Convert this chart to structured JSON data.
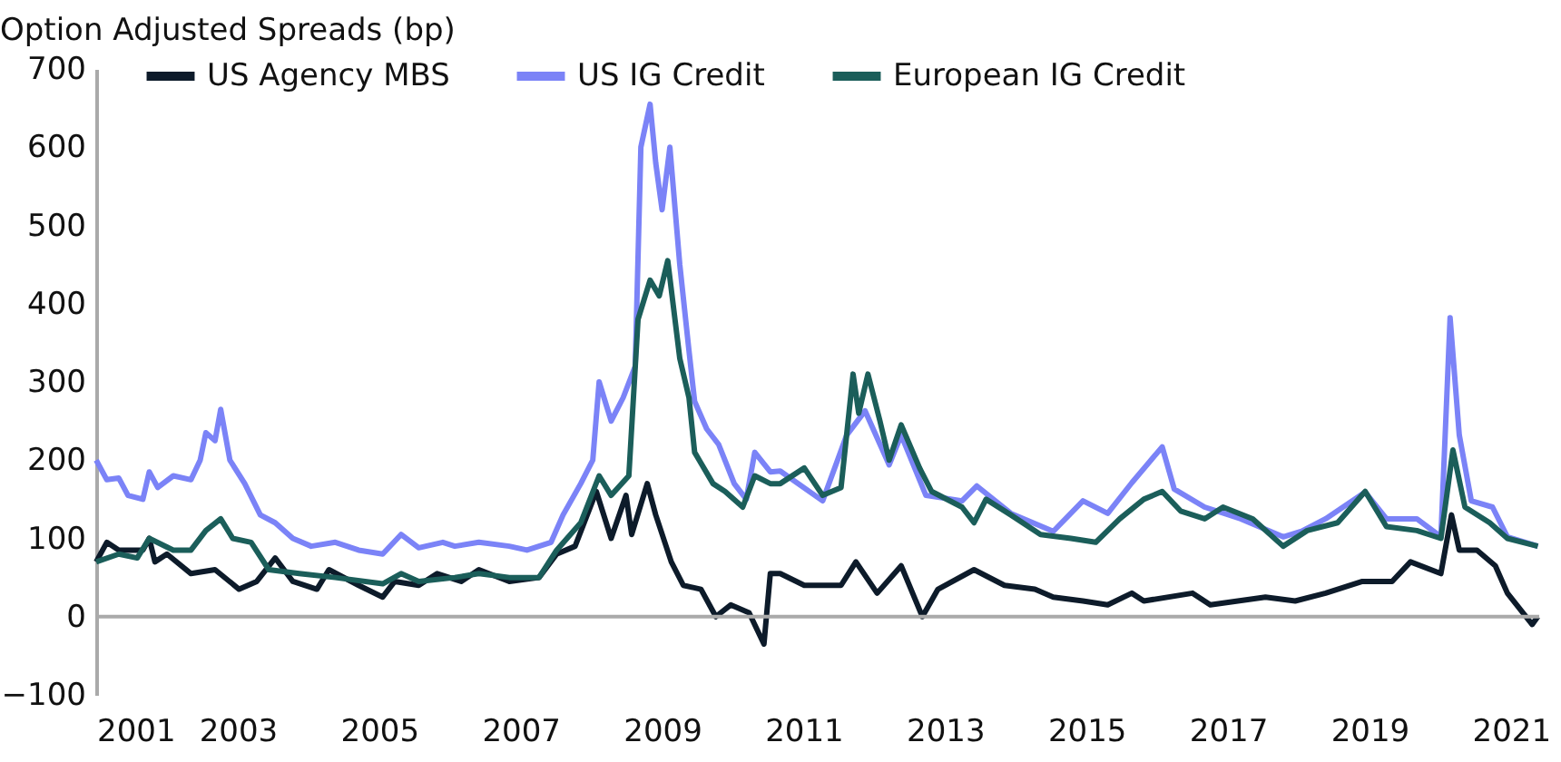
{
  "chart_data": {
    "type": "line",
    "title": "Option Adjusted Spreads (bp)",
    "xlim": [
      2001,
      2021.4
    ],
    "xticks": [
      2001,
      2003,
      2005,
      2007,
      2009,
      2011,
      2013,
      2015,
      2017,
      2019,
      2021
    ],
    "ylim": [
      -100,
      700
    ],
    "yticks": [
      -100,
      0,
      100,
      200,
      300,
      400,
      500,
      600,
      700
    ],
    "grid": false,
    "legend": "top",
    "line_style": "solid",
    "marker": "none",
    "ref_lines": [
      {
        "axis": "y",
        "value": 0,
        "color": "#aaaaaa"
      }
    ],
    "series": [
      {
        "name": "US Agency MBS",
        "color": "#0d1b2a",
        "x": [
          2001.0,
          2001.15,
          2001.32,
          2001.66,
          2001.75,
          2001.83,
          2002.0,
          2002.34,
          2002.68,
          2003.02,
          2003.27,
          2003.53,
          2003.78,
          2004.12,
          2004.29,
          2004.71,
          2005.05,
          2005.22,
          2005.56,
          2005.82,
          2006.16,
          2006.41,
          2006.84,
          2007.26,
          2007.51,
          2007.77,
          2008.07,
          2008.28,
          2008.49,
          2008.57,
          2008.79,
          2008.91,
          2009.13,
          2009.3,
          2009.55,
          2009.76,
          2009.97,
          2010.23,
          2010.44,
          2010.53,
          2010.67,
          2011.01,
          2011.53,
          2011.74,
          2012.04,
          2012.38,
          2012.68,
          2012.9,
          2013.41,
          2013.84,
          2014.27,
          2014.53,
          2014.95,
          2015.3,
          2015.64,
          2015.81,
          2016.5,
          2016.75,
          2017.53,
          2017.95,
          2018.38,
          2018.9,
          2019.32,
          2019.58,
          2020.01,
          2020.16,
          2020.27,
          2020.52,
          2020.78,
          2020.95,
          2021.3,
          2021.38
        ],
        "values": [
          70,
          95,
          85,
          85,
          100,
          70,
          80,
          55,
          60,
          35,
          45,
          75,
          45,
          35,
          60,
          40,
          25,
          45,
          40,
          55,
          45,
          60,
          45,
          50,
          80,
          90,
          160,
          100,
          155,
          105,
          170,
          130,
          70,
          40,
          35,
          0,
          15,
          5,
          -35,
          55,
          55,
          40,
          40,
          70,
          30,
          65,
          0,
          35,
          60,
          40,
          35,
          25,
          20,
          15,
          30,
          20,
          30,
          15,
          25,
          20,
          30,
          45,
          45,
          70,
          55,
          130,
          85,
          85,
          65,
          30,
          -10,
          0
        ]
      },
      {
        "name": "US IG Credit",
        "color": "#7b83f7",
        "x": [
          2001.0,
          2001.15,
          2001.32,
          2001.45,
          2001.66,
          2001.75,
          2001.87,
          2002.09,
          2002.34,
          2002.47,
          2002.55,
          2002.68,
          2002.76,
          2002.89,
          2003.1,
          2003.32,
          2003.53,
          2003.78,
          2004.04,
          2004.38,
          2004.71,
          2005.05,
          2005.31,
          2005.56,
          2005.9,
          2006.07,
          2006.41,
          2006.84,
          2007.09,
          2007.43,
          2007.6,
          2007.85,
          2008.02,
          2008.11,
          2008.28,
          2008.45,
          2008.62,
          2008.7,
          2008.83,
          2008.91,
          2009.0,
          2009.11,
          2009.25,
          2009.38,
          2009.46,
          2009.63,
          2009.8,
          2010.02,
          2010.19,
          2010.31,
          2010.53,
          2010.67,
          2011.27,
          2011.61,
          2011.87,
          2012.21,
          2012.38,
          2012.73,
          2013.24,
          2013.45,
          2013.93,
          2014.53,
          2014.95,
          2015.3,
          2015.64,
          2016.07,
          2016.24,
          2016.67,
          2017.18,
          2017.78,
          2018.04,
          2018.38,
          2018.94,
          2019.24,
          2019.67,
          2020.01,
          2020.14,
          2020.27,
          2020.44,
          2020.74,
          2020.95,
          2021.38
        ],
        "values": [
          200,
          175,
          177,
          155,
          150,
          185,
          165,
          180,
          175,
          200,
          235,
          225,
          265,
          200,
          170,
          130,
          120,
          100,
          90,
          95,
          85,
          80,
          105,
          88,
          95,
          90,
          95,
          90,
          85,
          95,
          130,
          170,
          200,
          300,
          250,
          280,
          320,
          600,
          655,
          580,
          520,
          600,
          450,
          340,
          275,
          240,
          220,
          170,
          150,
          210,
          185,
          186,
          148,
          232,
          263,
          194,
          232,
          155,
          148,
          167,
          132,
          109,
          148,
          132,
          171,
          217,
          163,
          140,
          125,
          102,
          109,
          125,
          159,
          125,
          125,
          102,
          382,
          232,
          148,
          140,
          102,
          90
        ]
      },
      {
        "name": "European IG Credit",
        "color": "#1b5e5a",
        "x": [
          2001.0,
          2001.32,
          2001.58,
          2001.75,
          2002.09,
          2002.34,
          2002.55,
          2002.76,
          2002.93,
          2003.19,
          2003.44,
          2003.87,
          2004.38,
          2005.05,
          2005.31,
          2005.56,
          2006.07,
          2006.41,
          2006.84,
          2007.26,
          2007.51,
          2007.85,
          2008.11,
          2008.28,
          2008.53,
          2008.66,
          2008.83,
          2008.96,
          2009.08,
          2009.25,
          2009.38,
          2009.46,
          2009.72,
          2009.89,
          2010.14,
          2010.31,
          2010.53,
          2010.67,
          2011.01,
          2011.27,
          2011.53,
          2011.7,
          2011.78,
          2011.91,
          2012.08,
          2012.21,
          2012.38,
          2012.64,
          2012.81,
          2013.24,
          2013.41,
          2013.58,
          2013.93,
          2014.35,
          2014.78,
          2015.13,
          2015.47,
          2015.81,
          2016.07,
          2016.33,
          2016.67,
          2016.93,
          2017.35,
          2017.78,
          2018.12,
          2018.55,
          2018.94,
          2019.24,
          2019.67,
          2020.01,
          2020.18,
          2020.35,
          2020.7,
          2020.95,
          2021.38
        ],
        "values": [
          70,
          80,
          75,
          100,
          85,
          85,
          110,
          125,
          100,
          95,
          60,
          55,
          50,
          42,
          55,
          45,
          50,
          55,
          50,
          50,
          85,
          120,
          180,
          155,
          180,
          380,
          430,
          410,
          455,
          330,
          280,
          210,
          170,
          160,
          140,
          180,
          170,
          170,
          190,
          155,
          165,
          310,
          260,
          310,
          250,
          200,
          245,
          190,
          160,
          140,
          120,
          150,
          130,
          105,
          100,
          95,
          125,
          150,
          160,
          135,
          125,
          140,
          125,
          90,
          110,
          120,
          160,
          115,
          110,
          100,
          213,
          140,
          120,
          100,
          90
        ]
      }
    ]
  }
}
